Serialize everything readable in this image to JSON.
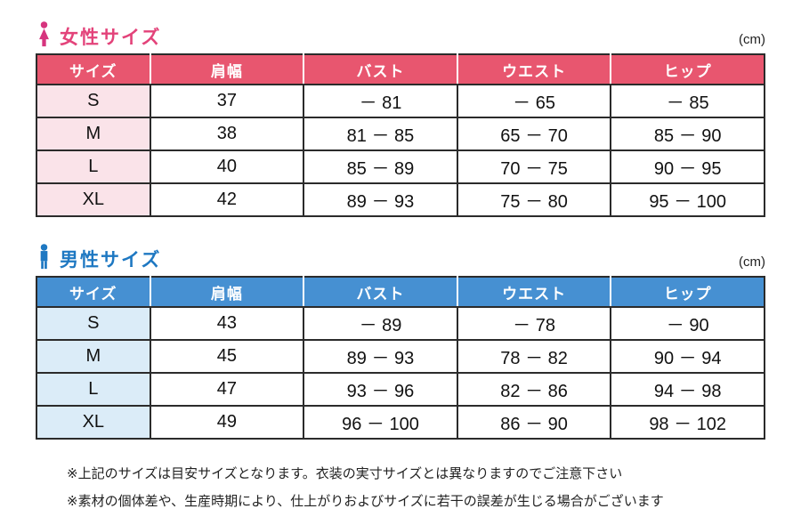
{
  "womens": {
    "title": "女性サイズ",
    "unit": "(cm)",
    "accent": "#d6347e",
    "header_bg": "#e8566f",
    "row_label_bg": "#fae3e9",
    "headers": [
      "サイズ",
      "肩幅",
      "バスト",
      "ウエスト",
      "ヒップ"
    ],
    "rows": [
      [
        "S",
        "37",
        "－ 81",
        "－ 65",
        "－ 85"
      ],
      [
        "M",
        "38",
        "81 － 85",
        "65 － 70",
        "85 － 90"
      ],
      [
        "L",
        "40",
        "85 － 89",
        "70 － 75",
        "90 － 95"
      ],
      [
        "XL",
        "42",
        "89 － 93",
        "75 － 80",
        "95 － 100"
      ]
    ]
  },
  "mens": {
    "title": "男性サイズ",
    "unit": "(cm)",
    "accent": "#1e78c2",
    "header_bg": "#4690d2",
    "row_label_bg": "#dbecf8",
    "headers": [
      "サイズ",
      "肩幅",
      "バスト",
      "ウエスト",
      "ヒップ"
    ],
    "rows": [
      [
        "S",
        "43",
        "－ 89",
        "－ 78",
        "－ 90"
      ],
      [
        "M",
        "45",
        "89 － 93",
        "78 － 82",
        "90 － 94"
      ],
      [
        "L",
        "47",
        "93 － 96",
        "82 － 86",
        "94 － 98"
      ],
      [
        "XL",
        "49",
        "96 － 100",
        "86 － 90",
        "98 － 102"
      ]
    ]
  },
  "notes": [
    "※上記のサイズは目安サイズとなります。衣装の実寸サイズとは異なりますのでご注意下さい",
    "※素材の個体差や、生産時期により、仕上がりおよびサイズに若干の誤差が生じる場合がございます"
  ]
}
